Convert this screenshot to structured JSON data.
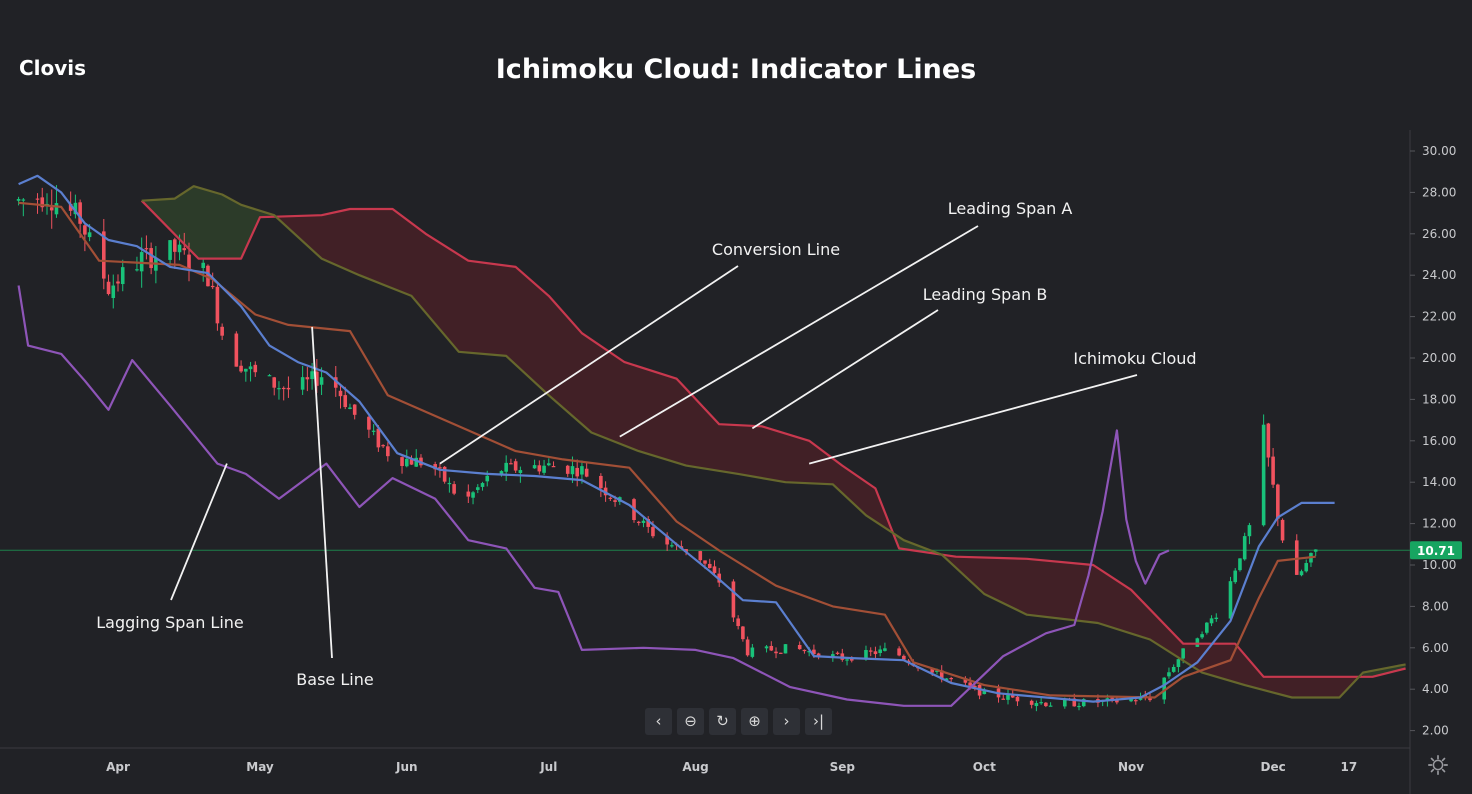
{
  "header": {
    "brand": "Clovis",
    "title": "Ichimoku Cloud: Indicator Lines"
  },
  "colors": {
    "background": "#212226",
    "conversion": "#5b7fcf",
    "base": "#a24f36",
    "span_a": "#66672c",
    "span_b": "#c8384e",
    "lagging": "#8e55b8",
    "candle_up": "#19c27a",
    "candle_down": "#f0525e",
    "price_line": "#1e7f4a"
  },
  "toolbar": {
    "icons": [
      "chevron-left-icon",
      "zoom-out-icon",
      "reset-icon",
      "zoom-in-icon",
      "chevron-right-icon",
      "scroll-to-end-icon"
    ]
  },
  "chart_data": {
    "type": "candlestick",
    "title": "Ichimoku Cloud: Indicator Lines",
    "ylim": [
      1.0,
      30.8
    ],
    "y_ticks": [
      "30.00",
      "28.00",
      "26.00",
      "24.00",
      "22.00",
      "20.00",
      "18.00",
      "16.00",
      "14.00",
      "12.00",
      "10.00",
      "8.00",
      "6.00",
      "4.00",
      "2.00"
    ],
    "x_ticks": [
      "Apr",
      "May",
      "Jun",
      "Jul",
      "Aug",
      "Sep",
      "Oct",
      "Nov",
      "Dec",
      "17"
    ],
    "x_tick_dates": [
      "2021-04-01",
      "2021-05-01",
      "2021-06-01",
      "2021-07-01",
      "2021-08-01",
      "2021-09-01",
      "2021-10-01",
      "2021-11-01",
      "2021-12-01",
      "2021-12-17"
    ],
    "last_price": {
      "label": "10.71",
      "value": 10.71
    },
    "series": [
      {
        "name": "Conversion Line",
        "points": [
          [
            "2021-03-11",
            28.4
          ],
          [
            "2021-03-15",
            28.8
          ],
          [
            "2021-03-20",
            28.0
          ],
          [
            "2021-03-25",
            26.5
          ],
          [
            "2021-03-30",
            25.7
          ],
          [
            "2021-04-05",
            25.4
          ],
          [
            "2021-04-12",
            24.4
          ],
          [
            "2021-04-20",
            24.1
          ],
          [
            "2021-04-27",
            22.5
          ],
          [
            "2021-05-03",
            20.6
          ],
          [
            "2021-05-09",
            19.8
          ],
          [
            "2021-05-15",
            19.3
          ],
          [
            "2021-05-22",
            17.9
          ],
          [
            "2021-05-30",
            15.4
          ],
          [
            "2021-06-08",
            14.6
          ],
          [
            "2021-06-18",
            14.4
          ],
          [
            "2021-06-28",
            14.3
          ],
          [
            "2021-07-08",
            14.1
          ],
          [
            "2021-07-18",
            12.9
          ],
          [
            "2021-07-28",
            11.0
          ],
          [
            "2021-08-04",
            9.7
          ],
          [
            "2021-08-11",
            8.3
          ],
          [
            "2021-08-18",
            8.2
          ],
          [
            "2021-08-26",
            5.6
          ],
          [
            "2021-09-03",
            5.5
          ],
          [
            "2021-09-14",
            5.4
          ],
          [
            "2021-09-24",
            4.3
          ],
          [
            "2021-10-04",
            3.8
          ],
          [
            "2021-10-14",
            3.6
          ],
          [
            "2021-10-24",
            3.4
          ],
          [
            "2021-11-03",
            3.6
          ],
          [
            "2021-11-08",
            4.2
          ],
          [
            "2021-11-15",
            5.3
          ],
          [
            "2021-11-22",
            7.3
          ],
          [
            "2021-11-28",
            10.9
          ],
          [
            "2021-12-02",
            12.3
          ],
          [
            "2021-12-07",
            13.0
          ],
          [
            "2021-12-14",
            13.0
          ]
        ]
      },
      {
        "name": "Base Line",
        "points": [
          [
            "2021-03-11",
            27.5
          ],
          [
            "2021-03-20",
            27.3
          ],
          [
            "2021-03-28",
            24.7
          ],
          [
            "2021-04-14",
            24.5
          ],
          [
            "2021-04-21",
            23.8
          ],
          [
            "2021-04-30",
            22.1
          ],
          [
            "2021-05-07",
            21.6
          ],
          [
            "2021-05-20",
            21.3
          ],
          [
            "2021-05-28",
            18.2
          ],
          [
            "2021-06-12",
            16.7
          ],
          [
            "2021-06-24",
            15.5
          ],
          [
            "2021-07-04",
            15.1
          ],
          [
            "2021-07-18",
            14.7
          ],
          [
            "2021-07-28",
            12.1
          ],
          [
            "2021-08-06",
            10.7
          ],
          [
            "2021-08-18",
            9.0
          ],
          [
            "2021-08-30",
            8.0
          ],
          [
            "2021-09-10",
            7.6
          ],
          [
            "2021-09-16",
            5.3
          ],
          [
            "2021-10-01",
            4.2
          ],
          [
            "2021-10-15",
            3.7
          ],
          [
            "2021-11-06",
            3.6
          ],
          [
            "2021-11-12",
            4.6
          ],
          [
            "2021-11-22",
            5.4
          ],
          [
            "2021-11-28",
            8.4
          ],
          [
            "2021-12-02",
            10.2
          ],
          [
            "2021-12-10",
            10.4
          ]
        ]
      },
      {
        "name": "Leading Span A",
        "points": [
          [
            "2021-04-06",
            27.6
          ],
          [
            "2021-04-13",
            27.7
          ],
          [
            "2021-04-17",
            28.3
          ],
          [
            "2021-04-23",
            27.9
          ],
          [
            "2021-04-27",
            27.4
          ],
          [
            "2021-05-04",
            26.9
          ],
          [
            "2021-05-14",
            24.8
          ],
          [
            "2021-05-22",
            24.0
          ],
          [
            "2021-06-02",
            23.0
          ],
          [
            "2021-06-12",
            20.3
          ],
          [
            "2021-06-22",
            20.1
          ],
          [
            "2021-07-01",
            18.2
          ],
          [
            "2021-07-10",
            16.4
          ],
          [
            "2021-07-20",
            15.5
          ],
          [
            "2021-07-30",
            14.8
          ],
          [
            "2021-08-10",
            14.4
          ],
          [
            "2021-08-20",
            14.0
          ],
          [
            "2021-08-30",
            13.9
          ],
          [
            "2021-09-06",
            12.4
          ],
          [
            "2021-09-14",
            11.2
          ],
          [
            "2021-09-22",
            10.5
          ],
          [
            "2021-10-01",
            8.6
          ],
          [
            "2021-10-10",
            7.6
          ],
          [
            "2021-10-25",
            7.2
          ],
          [
            "2021-11-05",
            6.4
          ],
          [
            "2021-11-16",
            4.8
          ],
          [
            "2021-11-25",
            4.2
          ],
          [
            "2021-12-05",
            3.6
          ],
          [
            "2021-12-15",
            3.6
          ],
          [
            "2021-12-20",
            4.8
          ],
          [
            "2021-12-29",
            5.2
          ]
        ]
      },
      {
        "name": "Leading Span B",
        "points": [
          [
            "2021-04-06",
            27.6
          ],
          [
            "2021-04-18",
            24.8
          ],
          [
            "2021-04-27",
            24.8
          ],
          [
            "2021-05-01",
            26.8
          ],
          [
            "2021-05-14",
            26.9
          ],
          [
            "2021-05-20",
            27.2
          ],
          [
            "2021-05-29",
            27.2
          ],
          [
            "2021-06-05",
            26.0
          ],
          [
            "2021-06-14",
            24.7
          ],
          [
            "2021-06-24",
            24.4
          ],
          [
            "2021-07-01",
            23.0
          ],
          [
            "2021-07-08",
            21.2
          ],
          [
            "2021-07-17",
            19.8
          ],
          [
            "2021-07-28",
            19.0
          ],
          [
            "2021-08-06",
            16.8
          ],
          [
            "2021-08-15",
            16.7
          ],
          [
            "2021-08-25",
            16.0
          ],
          [
            "2021-09-01",
            14.8
          ],
          [
            "2021-09-08",
            13.7
          ],
          [
            "2021-09-13",
            10.8
          ],
          [
            "2021-09-25",
            10.4
          ],
          [
            "2021-10-10",
            10.3
          ],
          [
            "2021-10-24",
            10.0
          ],
          [
            "2021-11-01",
            8.8
          ],
          [
            "2021-11-12",
            6.2
          ],
          [
            "2021-11-23",
            6.2
          ],
          [
            "2021-11-29",
            4.6
          ],
          [
            "2021-12-10",
            4.6
          ],
          [
            "2021-12-22",
            4.6
          ],
          [
            "2021-12-29",
            5.0
          ]
        ]
      },
      {
        "name": "Lagging Span Line",
        "points": [
          [
            "2021-03-11",
            23.5
          ],
          [
            "2021-03-13",
            20.6
          ],
          [
            "2021-03-20",
            20.2
          ],
          [
            "2021-03-25",
            18.9
          ],
          [
            "2021-03-30",
            17.5
          ],
          [
            "2021-04-04",
            19.9
          ],
          [
            "2021-04-12",
            17.7
          ],
          [
            "2021-04-22",
            14.9
          ],
          [
            "2021-04-28",
            14.4
          ],
          [
            "2021-05-05",
            13.2
          ],
          [
            "2021-05-15",
            14.9
          ],
          [
            "2021-05-22",
            12.8
          ],
          [
            "2021-05-29",
            14.2
          ],
          [
            "2021-06-07",
            13.2
          ],
          [
            "2021-06-14",
            11.2
          ],
          [
            "2021-06-22",
            10.8
          ],
          [
            "2021-06-28",
            8.9
          ],
          [
            "2021-07-03",
            8.7
          ],
          [
            "2021-07-08",
            5.9
          ],
          [
            "2021-07-21",
            6.0
          ],
          [
            "2021-08-01",
            5.9
          ],
          [
            "2021-08-09",
            5.5
          ],
          [
            "2021-08-21",
            4.1
          ],
          [
            "2021-09-02",
            3.5
          ],
          [
            "2021-09-14",
            3.2
          ],
          [
            "2021-09-24",
            3.2
          ],
          [
            "2021-10-05",
            5.6
          ],
          [
            "2021-10-14",
            6.7
          ],
          [
            "2021-10-20",
            7.1
          ],
          [
            "2021-10-23",
            9.5
          ],
          [
            "2021-10-26",
            12.6
          ],
          [
            "2021-10-29",
            16.5
          ],
          [
            "2021-10-31",
            12.2
          ],
          [
            "2021-11-02",
            10.2
          ],
          [
            "2021-11-04",
            9.1
          ],
          [
            "2021-11-07",
            10.5
          ],
          [
            "2021-11-09",
            10.7
          ]
        ]
      }
    ],
    "cloud": {
      "between": [
        "Leading Span A",
        "Leading Span B"
      ],
      "bullish_fill": "rgba(70,120,50,0.30)",
      "bearish_fill": "rgba(150,30,40,0.28)"
    },
    "candles": {
      "date_range": [
        "2021-03-11",
        "2021-12-10"
      ],
      "close_path": [
        [
          "2021-03-11",
          27.6
        ],
        [
          "2021-03-17",
          27.9
        ],
        [
          "2021-03-24",
          26.7
        ],
        [
          "2021-03-30",
          23.4
        ],
        [
          "2021-04-06",
          24.8
        ],
        [
          "2021-04-13",
          25.2
        ],
        [
          "2021-04-20",
          24.0
        ],
        [
          "2021-04-24",
          20.3
        ],
        [
          "2021-05-01",
          19.0
        ],
        [
          "2021-05-08",
          18.4
        ],
        [
          "2021-05-15",
          19.3
        ],
        [
          "2021-05-22",
          16.9
        ],
        [
          "2021-05-29",
          15.2
        ],
        [
          "2021-06-06",
          14.9
        ],
        [
          "2021-06-13",
          13.0
        ],
        [
          "2021-06-20",
          14.6
        ],
        [
          "2021-07-01",
          14.8
        ],
        [
          "2021-07-08",
          14.6
        ],
        [
          "2021-07-18",
          12.6
        ],
        [
          "2021-07-25",
          11.1
        ],
        [
          "2021-08-01",
          10.6
        ],
        [
          "2021-08-06",
          9.2
        ],
        [
          "2021-08-12",
          5.8
        ],
        [
          "2021-08-21",
          6.0
        ],
        [
          "2021-09-01",
          5.5
        ],
        [
          "2021-09-11",
          5.9
        ],
        [
          "2021-09-20",
          4.8
        ],
        [
          "2021-10-01",
          3.8
        ],
        [
          "2021-10-15",
          3.3
        ],
        [
          "2021-10-28",
          3.4
        ],
        [
          "2021-11-05",
          3.6
        ],
        [
          "2021-11-12",
          5.8
        ],
        [
          "2021-11-20",
          7.9
        ],
        [
          "2021-11-26",
          11.8
        ],
        [
          "2021-11-29",
          16.4
        ],
        [
          "2021-12-02",
          12.4
        ],
        [
          "2021-12-05",
          9.0
        ],
        [
          "2021-12-10",
          10.7
        ]
      ]
    },
    "annotations": [
      {
        "text": "Conversion Line",
        "target": [
          "2021-06-08",
          14.9
        ]
      },
      {
        "text": "Leading Span A",
        "target": [
          "2021-07-16",
          16.2
        ]
      },
      {
        "text": "Leading Span B",
        "target": [
          "2021-08-13",
          16.6
        ]
      },
      {
        "text": "Ichimoku Cloud",
        "target": [
          "2021-08-25",
          14.9
        ]
      },
      {
        "text": "Lagging Span Line",
        "target": [
          "2021-04-24",
          14.9
        ]
      },
      {
        "text": "Base Line",
        "target": [
          "2021-05-12",
          21.5
        ]
      }
    ]
  }
}
